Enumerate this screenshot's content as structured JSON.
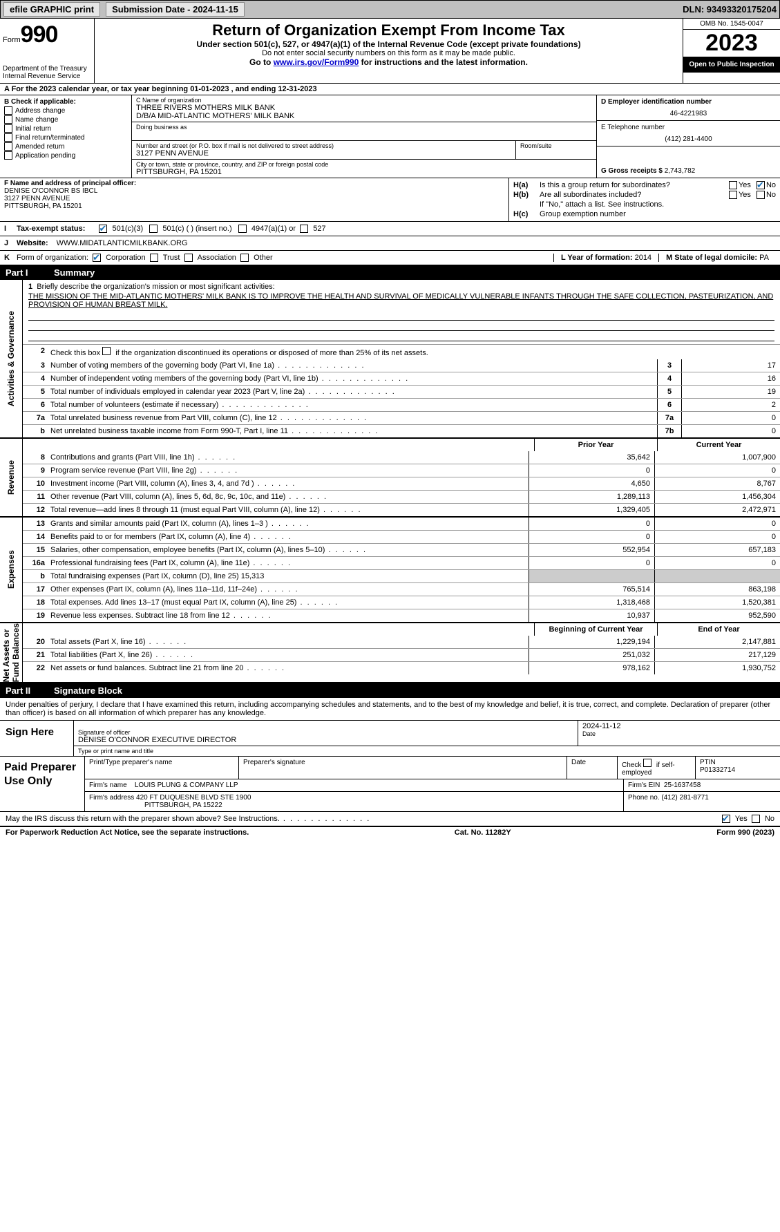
{
  "topbar": {
    "efile": "efile GRAPHIC print",
    "submission_label": "Submission Date - 2024-11-15",
    "dln": "DLN: 93493320175204"
  },
  "header": {
    "form_word": "Form",
    "form_num": "990",
    "dept": "Department of the Treasury\nInternal Revenue Service",
    "title": "Return of Organization Exempt From Income Tax",
    "subtitle": "Under section 501(c), 527, or 4947(a)(1) of the Internal Revenue Code (except private foundations)",
    "note1": "Do not enter social security numbers on this form as it may be made public.",
    "note2_pre": "Go to ",
    "note2_link": "www.irs.gov/Form990",
    "note2_post": " for instructions and the latest information.",
    "omb": "OMB No. 1545-0047",
    "year": "2023",
    "open": "Open to Public Inspection"
  },
  "section_a": "A  For the 2023 calendar year, or tax year beginning 01-01-2023   , and ending 12-31-2023",
  "col_b": {
    "label": "B Check if applicable:",
    "items": [
      "Address change",
      "Name change",
      "Initial return",
      "Final return/terminated",
      "Amended return",
      "Application pending"
    ]
  },
  "col_c": {
    "name_label": "C Name of organization",
    "name1": "THREE RIVERS MOTHERS MILK BANK",
    "name2": "D/B/A MID-ATLANTIC MOTHERS' MILK BANK",
    "dba_label": "Doing business as",
    "addr_label": "Number and street (or P.O. box if mail is not delivered to street address)",
    "addr": "3127 PENN AVENUE",
    "room_label": "Room/suite",
    "city_label": "City or town, state or province, country, and ZIP or foreign postal code",
    "city": "PITTSBURGH, PA   15201"
  },
  "col_de": {
    "d_label": "D Employer identification number",
    "ein": "46-4221983",
    "e_label": "E Telephone number",
    "phone": "(412) 281-4400",
    "g_label": "G Gross receipts $",
    "gross": "2,743,782"
  },
  "f_block": {
    "f_label": "F Name and address of principal officer:",
    "name": "DENISE O'CONNOR BS IBCL",
    "addr1": "3127 PENN AVENUE",
    "addr2": "PITTSBURGH, PA   15201"
  },
  "h_block": {
    "ha_label": "H(a)",
    "ha_text": "Is this a group return for subordinates?",
    "hb_label": "H(b)",
    "hb_text": "Are all subordinates included?",
    "hb_note": "If \"No,\" attach a list. See instructions.",
    "hc_label": "H(c)",
    "hc_text": "Group exemption number",
    "yes": "Yes",
    "no": "No"
  },
  "status": {
    "i": "I",
    "label": "Tax-exempt status:",
    "o1": "501(c)(3)",
    "o2": "501(c) (  ) (insert no.)",
    "o3": "4947(a)(1) or",
    "o4": "527"
  },
  "web": {
    "j": "J",
    "label": "Website:",
    "val": "WWW.MIDATLANTICMILKBANK.ORG"
  },
  "korg": {
    "k": "K",
    "label": "Form of organization:",
    "o1": "Corporation",
    "o2": "Trust",
    "o3": "Association",
    "o4": "Other",
    "l_label": "L Year of formation: ",
    "l_val": "2014",
    "m_label": "M State of legal domicile: ",
    "m_val": "PA"
  },
  "part1": {
    "tag": "Part I",
    "title": "Summary"
  },
  "mission": {
    "num": "1",
    "label": "Briefly describe the organization's mission or most significant activities:",
    "text": "THE MISSION OF THE MID-ATLANTIC MOTHERS' MILK BANK IS TO IMPROVE THE HEALTH AND SURVIVAL OF MEDICALLY VULNERABLE INFANTS THROUGH THE SAFE COLLECTION, PASTEURIZATION, AND PROVISION OF HUMAN BREAST MILK."
  },
  "line2": {
    "num": "2",
    "text": "Check this box       if the organization discontinued its operations or disposed of more than 25% of its net assets."
  },
  "ag_lines": [
    {
      "num": "3",
      "text": "Number of voting members of the governing body (Part VI, line 1a)",
      "box": "3",
      "val": "17"
    },
    {
      "num": "4",
      "text": "Number of independent voting members of the governing body (Part VI, line 1b)",
      "box": "4",
      "val": "16"
    },
    {
      "num": "5",
      "text": "Total number of individuals employed in calendar year 2023 (Part V, line 2a)",
      "box": "5",
      "val": "19"
    },
    {
      "num": "6",
      "text": "Total number of volunteers (estimate if necessary)",
      "box": "6",
      "val": "2"
    },
    {
      "num": "7a",
      "text": "Total unrelated business revenue from Part VIII, column (C), line 12",
      "box": "7a",
      "val": "0"
    },
    {
      "num": "b",
      "text": "Net unrelated business taxable income from Form 990-T, Part I, line 11",
      "box": "7b",
      "val": "0"
    }
  ],
  "vlabels": {
    "ag": "Activities & Governance",
    "rev": "Revenue",
    "exp": "Expenses",
    "na": "Net Assets or\nFund Balances"
  },
  "col_hdrs": {
    "prior": "Prior Year",
    "current": "Current Year",
    "begin": "Beginning of Current Year",
    "end": "End of Year"
  },
  "rev_lines": [
    {
      "num": "8",
      "text": "Contributions and grants (Part VIII, line 1h)",
      "p": "35,642",
      "c": "1,007,900"
    },
    {
      "num": "9",
      "text": "Program service revenue (Part VIII, line 2g)",
      "p": "0",
      "c": "0"
    },
    {
      "num": "10",
      "text": "Investment income (Part VIII, column (A), lines 3, 4, and 7d )",
      "p": "4,650",
      "c": "8,767"
    },
    {
      "num": "11",
      "text": "Other revenue (Part VIII, column (A), lines 5, 6d, 8c, 9c, 10c, and 11e)",
      "p": "1,289,113",
      "c": "1,456,304"
    },
    {
      "num": "12",
      "text": "Total revenue—add lines 8 through 11 (must equal Part VIII, column (A), line 12)",
      "p": "1,329,405",
      "c": "2,472,971"
    }
  ],
  "exp_lines": [
    {
      "num": "13",
      "text": "Grants and similar amounts paid (Part IX, column (A), lines 1–3 )",
      "p": "0",
      "c": "0"
    },
    {
      "num": "14",
      "text": "Benefits paid to or for members (Part IX, column (A), line 4)",
      "p": "0",
      "c": "0"
    },
    {
      "num": "15",
      "text": "Salaries, other compensation, employee benefits (Part IX, column (A), lines 5–10)",
      "p": "552,954",
      "c": "657,183"
    },
    {
      "num": "16a",
      "text": "Professional fundraising fees (Part IX, column (A), line 11e)",
      "p": "0",
      "c": "0"
    },
    {
      "num": "b",
      "text": "Total fundraising expenses (Part IX, column (D), line 25) 15,313",
      "shade": true
    },
    {
      "num": "17",
      "text": "Other expenses (Part IX, column (A), lines 11a–11d, 11f–24e)",
      "p": "765,514",
      "c": "863,198"
    },
    {
      "num": "18",
      "text": "Total expenses. Add lines 13–17 (must equal Part IX, column (A), line 25)",
      "p": "1,318,468",
      "c": "1,520,381"
    },
    {
      "num": "19",
      "text": "Revenue less expenses. Subtract line 18 from line 12",
      "p": "10,937",
      "c": "952,590"
    }
  ],
  "na_lines": [
    {
      "num": "20",
      "text": "Total assets (Part X, line 16)",
      "p": "1,229,194",
      "c": "2,147,881"
    },
    {
      "num": "21",
      "text": "Total liabilities (Part X, line 26)",
      "p": "251,032",
      "c": "217,129"
    },
    {
      "num": "22",
      "text": "Net assets or fund balances. Subtract line 21 from line 20",
      "p": "978,162",
      "c": "1,930,752"
    }
  ],
  "part2": {
    "tag": "Part II",
    "title": "Signature Block"
  },
  "sig_intro": "Under penalties of perjury, I declare that I have examined this return, including accompanying schedules and statements, and to the best of my knowledge and belief, it is true, correct, and complete. Declaration of preparer (other than officer) is based on all information of which preparer has any knowledge.",
  "sign": {
    "here": "Sign Here",
    "sig_label": "Signature of officer",
    "name": "DENISE O'CONNOR  EXECUTIVE DIRECTOR",
    "type_label": "Type or print name and title",
    "date_label": "Date",
    "date": "2024-11-12"
  },
  "prep": {
    "title": "Paid Preparer Use Only",
    "h1": "Print/Type preparer's name",
    "h2": "Preparer's signature",
    "h3": "Date",
    "h4_a": "Check",
    "h4_b": "if self-employed",
    "h5": "PTIN",
    "ptin": "P01332714",
    "firm_name_l": "Firm's name",
    "firm_name": "LOUIS PLUNG & COMPANY LLP",
    "firm_ein_l": "Firm's EIN",
    "firm_ein": "25-1637458",
    "firm_addr_l": "Firm's address",
    "firm_addr1": "420 FT DUQUESNE BLVD STE 1900",
    "firm_addr2": "PITTSBURGH, PA   15222",
    "phone_l": "Phone no.",
    "phone": "(412) 281-8771"
  },
  "discuss": {
    "text": "May the IRS discuss this return with the preparer shown above? See Instructions.",
    "yes": "Yes",
    "no": "No"
  },
  "footer": {
    "left": "For Paperwork Reduction Act Notice, see the separate instructions.",
    "mid": "Cat. No. 11282Y",
    "right": "Form 990 (2023)"
  }
}
